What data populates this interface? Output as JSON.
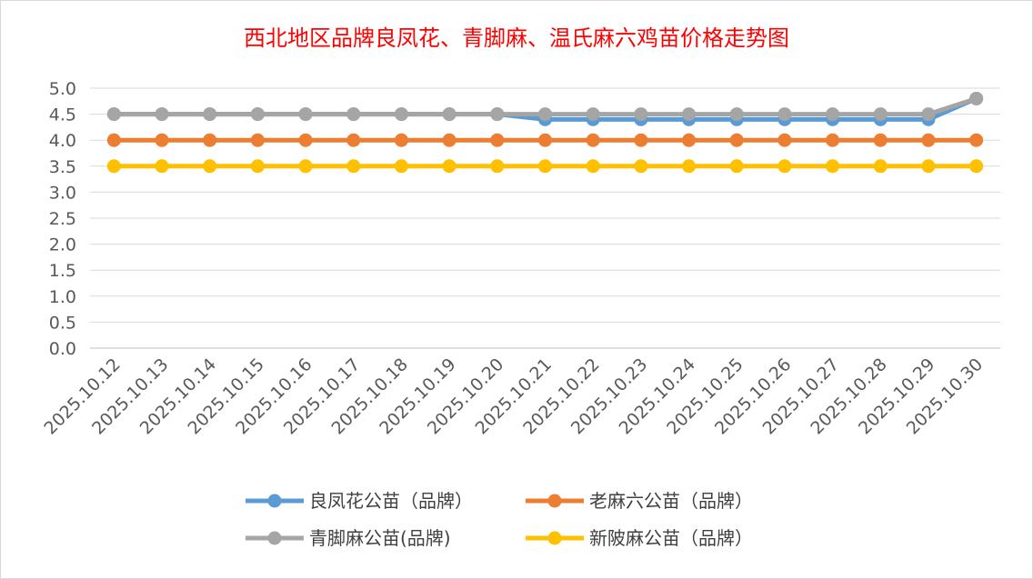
{
  "chart_data": {
    "type": "line",
    "title": "西北地区品牌良凤花、青脚麻、温氏麻六鸡苗价格走势图",
    "xlabel": "",
    "ylabel": "",
    "ylim": [
      0,
      5.0
    ],
    "yticks": [
      "0.0",
      "0.5",
      "1.0",
      "1.5",
      "2.0",
      "2.5",
      "3.0",
      "3.5",
      "4.0",
      "4.5",
      "5.0"
    ],
    "grid": true,
    "legend_position": "bottom",
    "categories": [
      "2025.10.12",
      "2025.10.13",
      "2025.10.14",
      "2025.10.15",
      "2025.10.16",
      "2025.10.17",
      "2025.10.18",
      "2025.10.19",
      "2025.10.20",
      "2025.10.21",
      "2025.10.22",
      "2025.10.23",
      "2025.10.24",
      "2025.10.25",
      "2025.10.26",
      "2025.10.27",
      "2025.10.28",
      "2025.10.29",
      "2025.10.30"
    ],
    "series": [
      {
        "name": "良凤花公苗（品牌）",
        "color": "#5b9bd5",
        "values": [
          4.5,
          4.5,
          4.5,
          4.5,
          4.5,
          4.5,
          4.5,
          4.5,
          4.5,
          4.4,
          4.4,
          4.4,
          4.4,
          4.4,
          4.4,
          4.4,
          4.4,
          4.4,
          4.8
        ]
      },
      {
        "name": "老麻六公苗（品牌）",
        "color": "#ed7d31",
        "values": [
          4.0,
          4.0,
          4.0,
          4.0,
          4.0,
          4.0,
          4.0,
          4.0,
          4.0,
          4.0,
          4.0,
          4.0,
          4.0,
          4.0,
          4.0,
          4.0,
          4.0,
          4.0,
          4.0
        ]
      },
      {
        "name": "青脚麻公苗(品牌)",
        "color": "#a5a5a5",
        "values": [
          4.5,
          4.5,
          4.5,
          4.5,
          4.5,
          4.5,
          4.5,
          4.5,
          4.5,
          4.5,
          4.5,
          4.5,
          4.5,
          4.5,
          4.5,
          4.5,
          4.5,
          4.5,
          4.8
        ]
      },
      {
        "name": "新陂麻公苗（品牌）",
        "color": "#ffc000",
        "values": [
          3.5,
          3.5,
          3.5,
          3.5,
          3.5,
          3.5,
          3.5,
          3.5,
          3.5,
          3.5,
          3.5,
          3.5,
          3.5,
          3.5,
          3.5,
          3.5,
          3.5,
          3.5,
          3.5
        ]
      }
    ]
  }
}
